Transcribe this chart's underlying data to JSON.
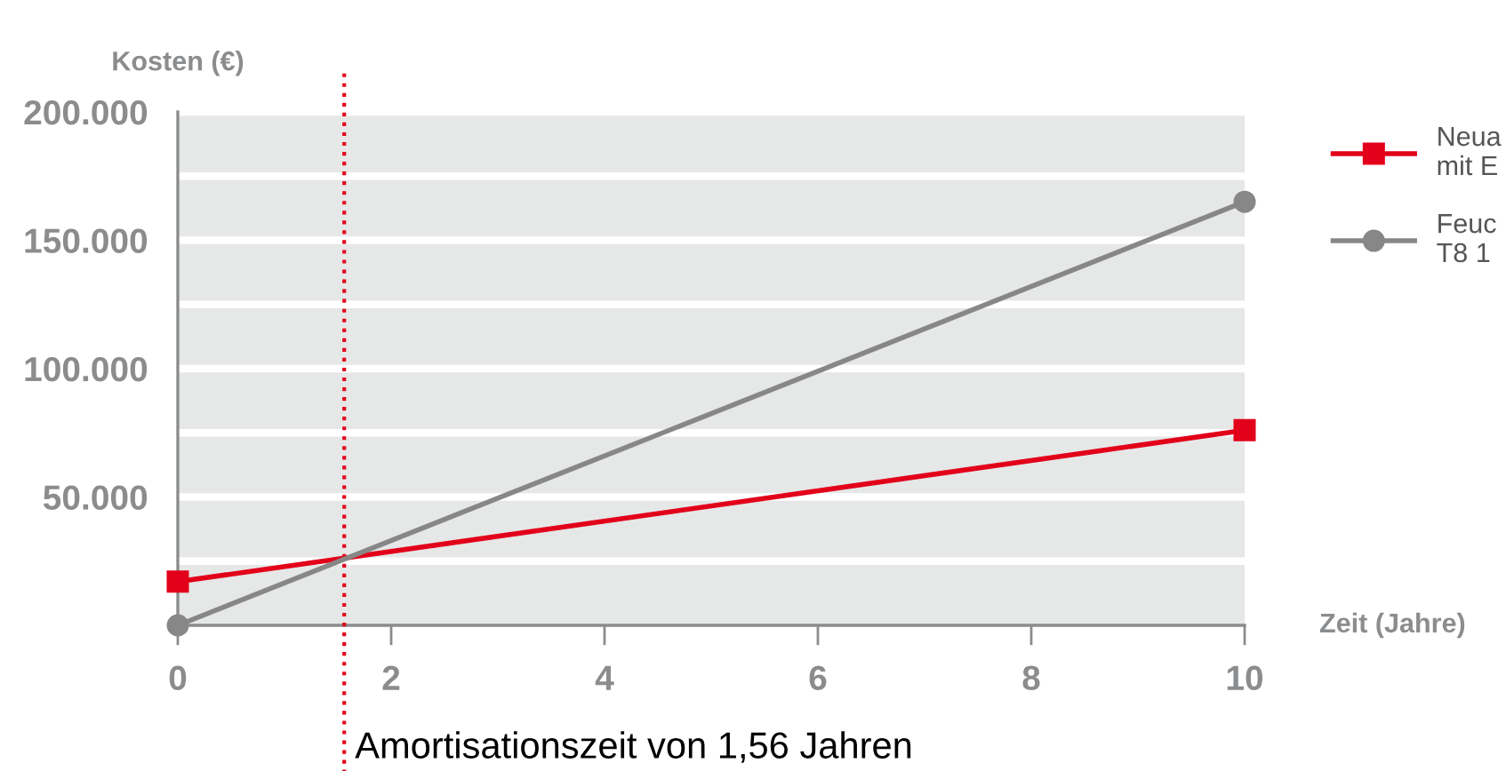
{
  "chart_data": {
    "type": "line",
    "ylabel": "Kosten (€)",
    "xlabel": "Zeit (Jahre)",
    "x": [
      0,
      10
    ],
    "series": [
      {
        "name": "Neua\nmit E",
        "color": "#e2001a",
        "values": [
          17000,
          76000
        ],
        "marker": "square"
      },
      {
        "name": "Feuc\nT8 1",
        "color": "#878787",
        "values": [
          0,
          165000
        ],
        "marker": "circle"
      }
    ],
    "xlim": [
      0,
      10
    ],
    "xticks": [
      0,
      2,
      4,
      6,
      8,
      10
    ],
    "ylim": [
      0,
      200000
    ],
    "yticks": [
      {
        "value": 25000,
        "label": null
      },
      {
        "value": 50000,
        "label": "50.000"
      },
      {
        "value": 75000,
        "label": null
      },
      {
        "value": 100000,
        "label": "100.000"
      },
      {
        "value": 125000,
        "label": null
      },
      {
        "value": 150000,
        "label": "150.000"
      },
      {
        "value": 175000,
        "label": null
      },
      {
        "value": 200000,
        "label": "200.000"
      }
    ],
    "grid": "y",
    "legend": "right",
    "line_style": "solid",
    "ref_lines": [
      {
        "axis": "x",
        "value": 1.56,
        "label": "Amortisationszeit von 1,56 Jahren",
        "color": "#e2001a",
        "line_style": "dotted"
      }
    ]
  }
}
